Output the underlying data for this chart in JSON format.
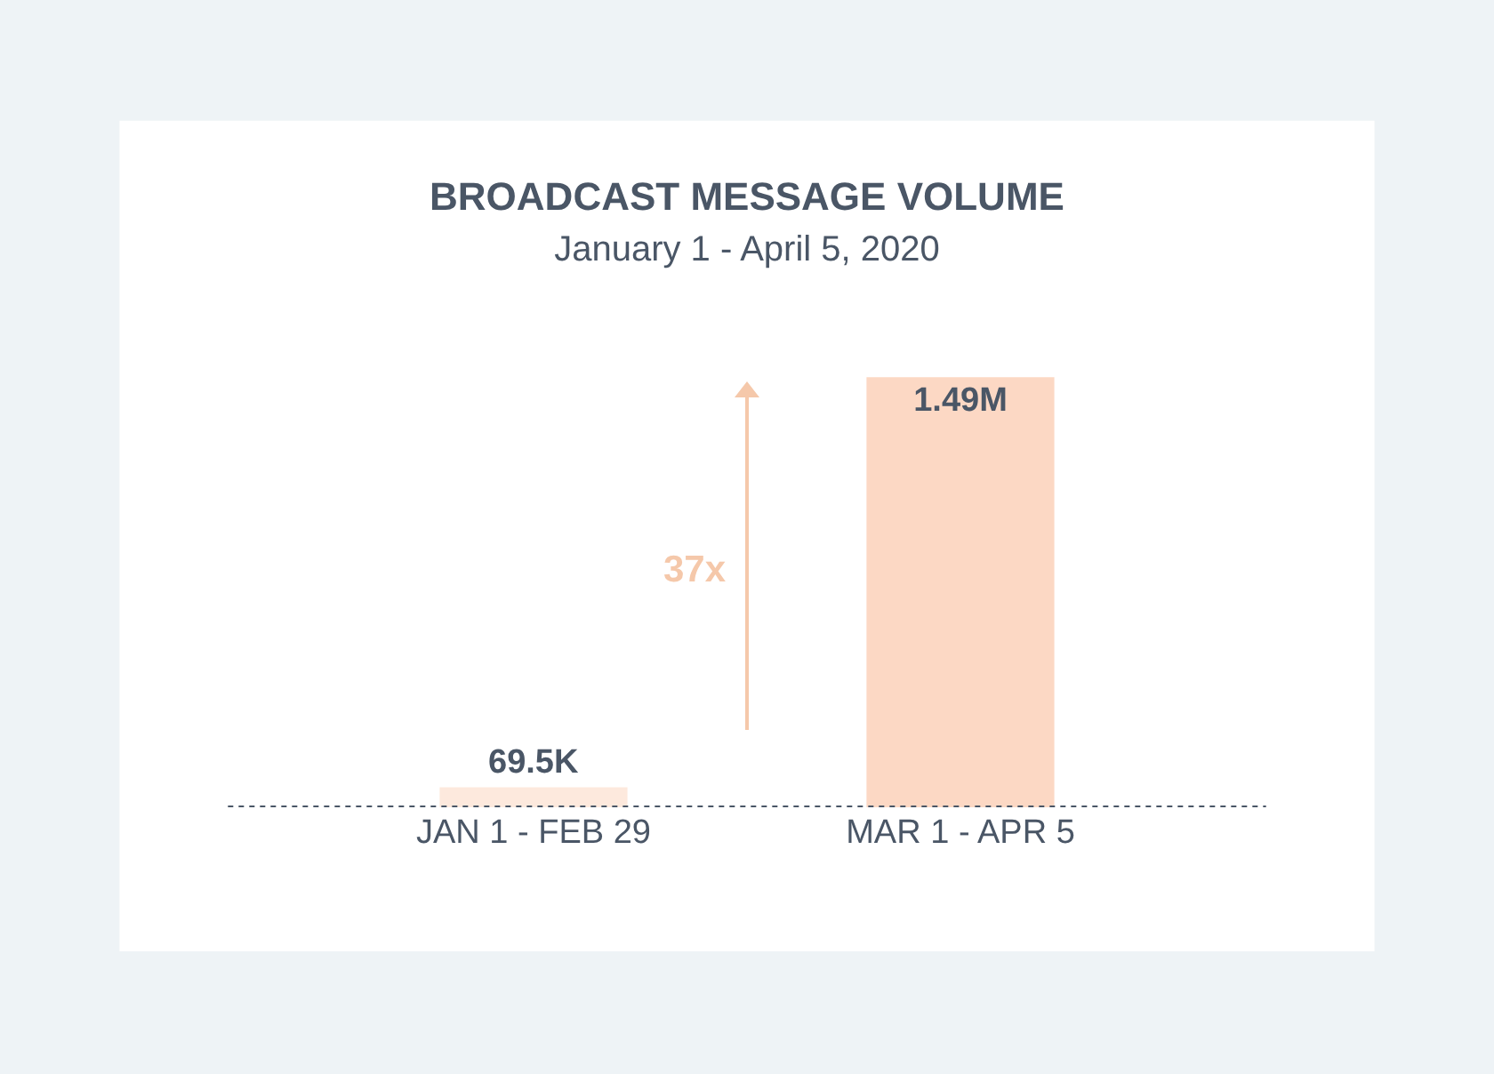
{
  "chart_data": {
    "type": "bar",
    "title": "BROADCAST MESSAGE VOLUME",
    "subtitle": "January 1 - April 5, 2020",
    "categories": [
      "JAN 1 - FEB 29",
      "MAR 1 - APR 5"
    ],
    "values": [
      69500,
      1490000
    ],
    "value_labels": [
      "69.5K",
      "1.49M"
    ],
    "colors": [
      "#fde9dd",
      "#fcd8c4"
    ],
    "annotations": [
      "37x"
    ],
    "relative": false
  }
}
